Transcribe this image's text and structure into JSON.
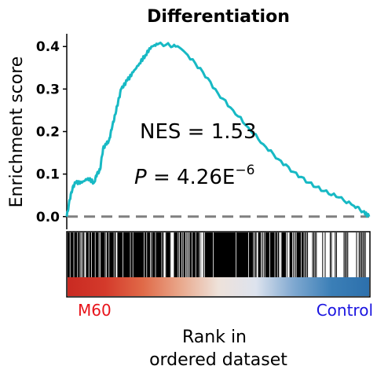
{
  "chart_data": {
    "type": "line",
    "title": "Differentiation",
    "ylabel": "Enrichment score",
    "xlabel_lines": [
      "Rank in",
      "ordered dataset"
    ],
    "ylim": [
      -0.03,
      0.43
    ],
    "yticks": [
      "0.0",
      "0.1",
      "0.2",
      "0.3",
      "0.4"
    ],
    "ytick_values": [
      0.0,
      0.1,
      0.2,
      0.3,
      0.4
    ],
    "xlim": [
      0,
      1
    ],
    "baseline": 0.0,
    "line_color": "#17b9c4",
    "baseline_color": "#808080",
    "series": [
      {
        "values": [
          [
            0.0,
            0.0
          ],
          [
            0.01,
            0.04
          ],
          [
            0.02,
            0.07
          ],
          [
            0.03,
            0.08
          ],
          [
            0.05,
            0.08
          ],
          [
            0.07,
            0.09
          ],
          [
            0.09,
            0.08
          ],
          [
            0.1,
            0.1
          ],
          [
            0.11,
            0.11
          ],
          [
            0.12,
            0.16
          ],
          [
            0.13,
            0.17
          ],
          [
            0.14,
            0.18
          ],
          [
            0.15,
            0.21
          ],
          [
            0.16,
            0.24
          ],
          [
            0.17,
            0.27
          ],
          [
            0.18,
            0.3
          ],
          [
            0.2,
            0.32
          ],
          [
            0.22,
            0.34
          ],
          [
            0.24,
            0.36
          ],
          [
            0.26,
            0.38
          ],
          [
            0.28,
            0.4
          ],
          [
            0.3,
            0.405
          ],
          [
            0.33,
            0.405
          ],
          [
            0.36,
            0.4
          ],
          [
            0.4,
            0.38
          ],
          [
            0.45,
            0.34
          ],
          [
            0.5,
            0.29
          ],
          [
            0.55,
            0.25
          ],
          [
            0.6,
            0.21
          ],
          [
            0.65,
            0.17
          ],
          [
            0.7,
            0.135
          ],
          [
            0.75,
            0.105
          ],
          [
            0.8,
            0.08
          ],
          [
            0.85,
            0.06
          ],
          [
            0.9,
            0.045
          ],
          [
            0.95,
            0.025
          ],
          [
            0.98,
            0.012
          ],
          [
            1.0,
            0.0
          ]
        ]
      }
    ],
    "annotations": [
      {
        "text": "NES = 1.53"
      },
      {
        "prefix": "P",
        "text": " = 4.26E",
        "superscript": "−6"
      }
    ],
    "groups": {
      "left": {
        "label": "M60",
        "color": "#e8141b"
      },
      "right": {
        "label": "Control",
        "color": "#1a14e0"
      }
    },
    "gradient_colors": [
      "#c92a22",
      "#d43a2b",
      "#e06a48",
      "#e9a88c",
      "#eee2da",
      "#dde3ee",
      "#7fa8d0",
      "#3b7fb7",
      "#2d70ac"
    ]
  }
}
